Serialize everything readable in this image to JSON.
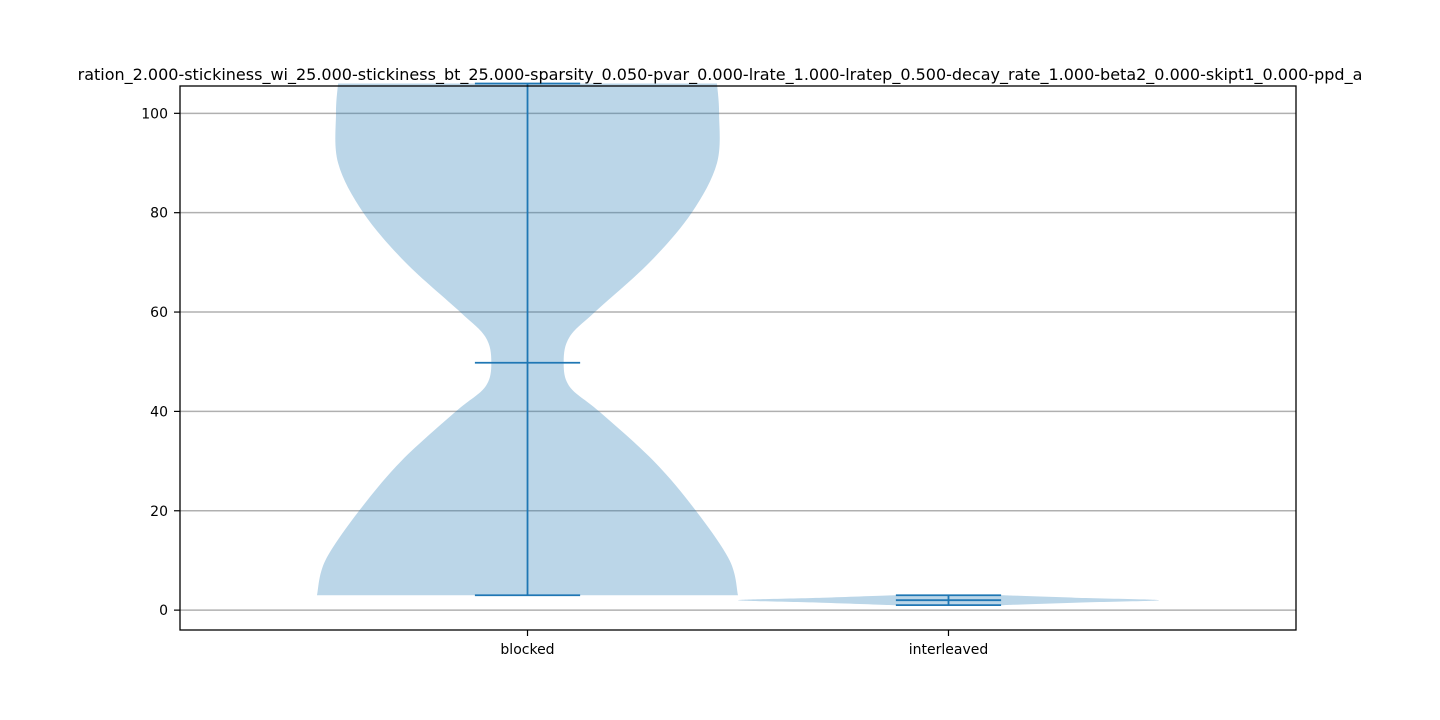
{
  "chart_data": {
    "type": "violin",
    "title": "ration_2.000-stickiness_wi_25.000-stickiness_bt_25.000-sparsity_0.050-pvar_0.000-lrate_1.000-lratep_0.500-decay_rate_1.000-beta2_0.000-skipt1_0.000-ppd_a",
    "xlabel": "",
    "ylabel": "",
    "categories": [
      "blocked",
      "interleaved"
    ],
    "ylim": [
      -4,
      105.5
    ],
    "yticks": [
      0,
      20,
      40,
      60,
      80,
      100
    ],
    "ytick_labels": [
      "0",
      "20",
      "40",
      "60",
      "80",
      "100"
    ],
    "grid": "horizontal",
    "violin_color": "#1f77b4",
    "violins": [
      {
        "category": "blocked",
        "min": 3,
        "median": 49.8,
        "max": 106,
        "density_half_width": [
          [
            3,
            0.5
          ],
          [
            10,
            0.48
          ],
          [
            20,
            0.4
          ],
          [
            30,
            0.3
          ],
          [
            40,
            0.17
          ],
          [
            45,
            0.1
          ],
          [
            50,
            0.086
          ],
          [
            55,
            0.1
          ],
          [
            60,
            0.16
          ],
          [
            70,
            0.29
          ],
          [
            80,
            0.39
          ],
          [
            90,
            0.45
          ],
          [
            100,
            0.455
          ],
          [
            106,
            0.45
          ]
        ]
      },
      {
        "category": "interleaved",
        "min": 1,
        "median": 2,
        "max": 3,
        "density_half_width": [
          [
            1,
            0.13
          ],
          [
            1.5,
            0.3
          ],
          [
            2,
            0.5
          ],
          [
            2.5,
            0.3
          ],
          [
            3,
            0.13
          ]
        ]
      }
    ]
  }
}
